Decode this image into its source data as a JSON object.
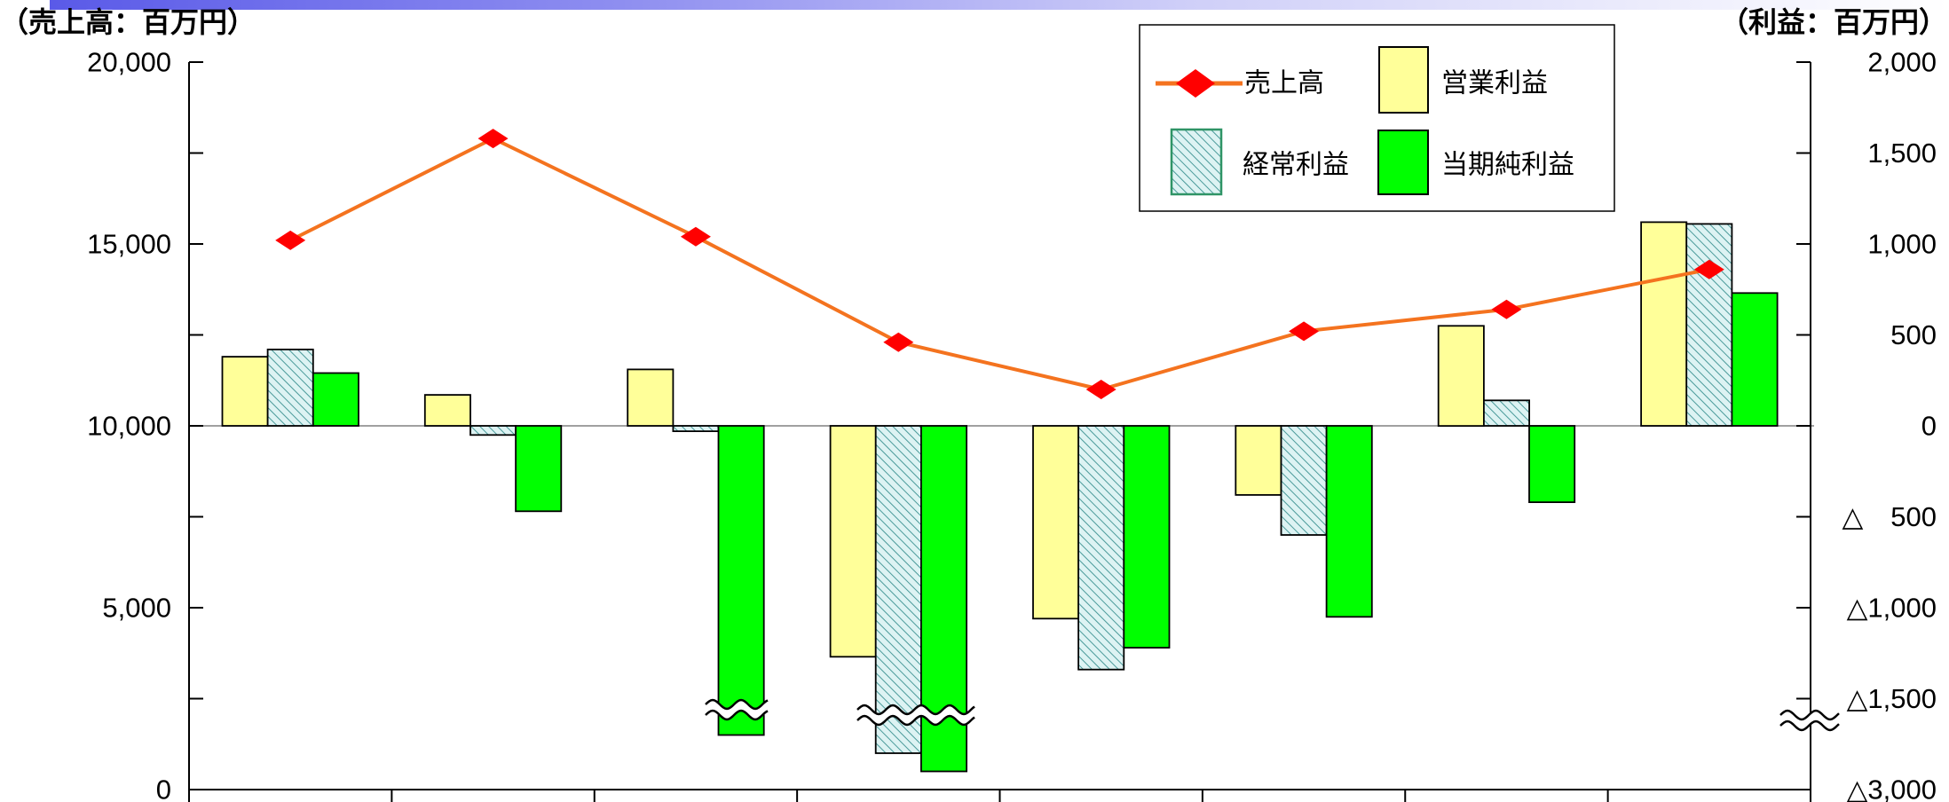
{
  "chart_data": {
    "type": "bar",
    "legend": {
      "position": "top-right"
    },
    "grid": false,
    "zero_line": true,
    "left_axis": {
      "label": "（売上高：百万円）",
      "ylim": [
        0,
        20000
      ],
      "ticks": [
        {
          "value": 20000,
          "label": "20,000"
        },
        {
          "value": 15000,
          "label": "15,000"
        },
        {
          "value": 10000,
          "label": "10,000"
        },
        {
          "value": 5000,
          "label": "5,000"
        },
        {
          "value": 0,
          "label": "0"
        }
      ]
    },
    "right_axis": {
      "label": "（利益：百万円）",
      "ylim": [
        -3000,
        2000
      ],
      "axis_break": [
        -1500,
        -3000
      ],
      "ticks": [
        {
          "value": 2000,
          "label": "2,000"
        },
        {
          "value": 1500,
          "label": "1,500"
        },
        {
          "value": 1000,
          "label": "1,000"
        },
        {
          "value": 500,
          "label": "500"
        },
        {
          "value": 0,
          "label": "0"
        },
        {
          "value": -500,
          "label": "△　500"
        },
        {
          "value": -1000,
          "label": "△1,000"
        },
        {
          "value": -1500,
          "label": "△1,500"
        },
        {
          "value": -3000,
          "label": "△3,000"
        }
      ]
    },
    "series": [
      {
        "name": "売上高",
        "type": "line",
        "axis": "left",
        "color": "#F4731F",
        "marker": "diamond",
        "marker_color": "#FF0000",
        "values": [
          15100,
          17900,
          15200,
          12300,
          11000,
          12600,
          13200,
          14300
        ]
      },
      {
        "name": "営業利益",
        "type": "bar",
        "axis": "right",
        "color": "#FFFF99",
        "values": [
          380,
          170,
          310,
          -1270,
          -1060,
          -380,
          550,
          1120
        ]
      },
      {
        "name": "経常利益",
        "type": "bar",
        "axis": "right",
        "color": "#DDF3F3",
        "pattern": "diagonal-hatch",
        "hatch_color": "#4A9A9A",
        "values": [
          420,
          -50,
          -30,
          -2800,
          -1340,
          -600,
          140,
          1110
        ]
      },
      {
        "name": "当期純利益",
        "type": "bar",
        "axis": "right",
        "color": "#00FF00",
        "values": [
          290,
          -470,
          -2700,
          -2900,
          -1220,
          -1050,
          -420,
          730
        ]
      }
    ]
  }
}
